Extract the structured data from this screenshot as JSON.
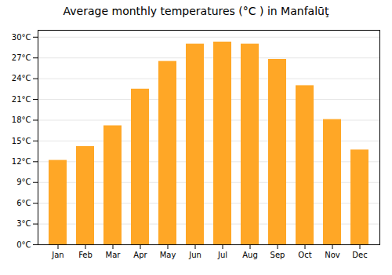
{
  "chart_data": {
    "type": "bar",
    "title": "Average monthly temperatures (°C ) in Manfalūţ",
    "categories": [
      "Jan",
      "Feb",
      "Mar",
      "Apr",
      "May",
      "Jun",
      "Jul",
      "Aug",
      "Sep",
      "Oct",
      "Nov",
      "Dec"
    ],
    "values": [
      12.2,
      14.2,
      17.2,
      22.5,
      26.5,
      29.0,
      29.3,
      29.0,
      26.8,
      23.0,
      18.1,
      13.7
    ],
    "color": "#FFA726",
    "ylim": [
      0,
      31
    ],
    "yticks": [
      {
        "value": 0,
        "label": "0°C"
      },
      {
        "value": 3,
        "label": "3°C"
      },
      {
        "value": 6,
        "label": "6°C"
      },
      {
        "value": 9,
        "label": "9°C"
      },
      {
        "value": 12,
        "label": "12°C"
      },
      {
        "value": 15,
        "label": "15°C"
      },
      {
        "value": 18,
        "label": "18°C"
      },
      {
        "value": 21,
        "label": "21°C"
      },
      {
        "value": 24,
        "label": "24°C"
      },
      {
        "value": 27,
        "label": "27°C"
      },
      {
        "value": 30,
        "label": "30°C"
      }
    ],
    "grid": true
  }
}
